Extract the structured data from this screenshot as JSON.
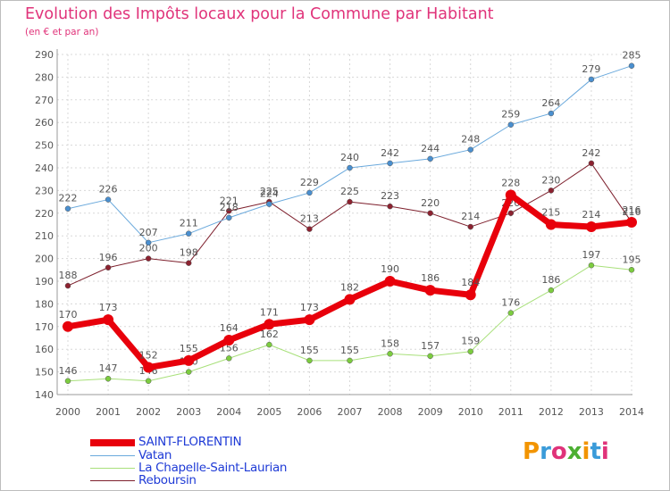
{
  "title": "Evolution des Impôts locaux pour la Commune par Habitant",
  "subtitle": "(en € et par an)",
  "logo": {
    "text": "Proxiti",
    "colors": [
      "#f29400",
      "#3a9bd9",
      "#e0337a",
      "#4caf32",
      "#f29400",
      "#3a9bd9",
      "#e0337a"
    ]
  },
  "chart_data": {
    "type": "line",
    "title": "Evolution des Impôts locaux pour la Commune par Habitant",
    "subtitle": "(en € et par an)",
    "xlabel": "",
    "ylabel": "",
    "ylim": [
      140,
      290
    ],
    "ytick_step": 10,
    "grid": true,
    "x": [
      "2000",
      "2001",
      "2002",
      "2003",
      "2004",
      "2005",
      "2006",
      "2007",
      "2008",
      "2009",
      "2010",
      "2011",
      "2012",
      "2013",
      "2014"
    ],
    "series": [
      {
        "name": "Reboursin",
        "color": "#7d1f2c",
        "marker": "#8c2230",
        "width": 1,
        "values": [
          188,
          196,
          200,
          198,
          221,
          225,
          213,
          225,
          223,
          220,
          214,
          220,
          230,
          242,
          216
        ]
      },
      {
        "name": "La Chapelle-Saint-Laurian",
        "color": "#a8e07a",
        "marker": "#7ccc3f",
        "width": 1,
        "values": [
          146,
          147,
          146,
          150,
          156,
          162,
          155,
          155,
          158,
          157,
          159,
          176,
          186,
          197,
          195
        ]
      },
      {
        "name": "Vatan",
        "color": "#6aa9dc",
        "marker": "#4a8fcf",
        "width": 1,
        "values": [
          222,
          226,
          207,
          211,
          218,
          224,
          229,
          240,
          242,
          244,
          248,
          259,
          264,
          279,
          285
        ]
      },
      {
        "name": "SAINT-FLORENTIN",
        "color": "#e8000b",
        "marker": "#e8000b",
        "width": 7,
        "values": [
          170,
          173,
          152,
          155,
          164,
          171,
          173,
          182,
          190,
          186,
          184,
          228,
          215,
          214,
          216
        ]
      }
    ],
    "legend_order": [
      "SAINT-FLORENTIN",
      "Vatan",
      "La Chapelle-Saint-Laurian",
      "Reboursin"
    ],
    "legend_position": "bottom-left"
  }
}
